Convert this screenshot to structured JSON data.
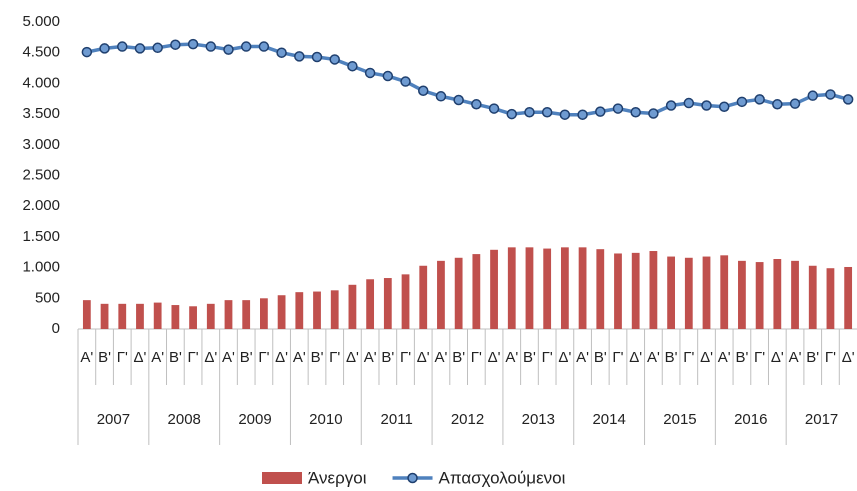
{
  "chart_data": {
    "type": "bar",
    "categories": [
      "Α'",
      "Β'",
      "Γ'",
      "Δ'",
      "Α'",
      "Β'",
      "Γ'",
      "Δ'",
      "Α'",
      "Β'",
      "Γ'",
      "Δ'",
      "Α'",
      "Β'",
      "Γ'",
      "Δ'",
      "Α'",
      "Β'",
      "Γ'",
      "Δ'",
      "Α'",
      "Β'",
      "Γ'",
      "Δ'",
      "Α'",
      "Β'",
      "Γ'",
      "Δ'",
      "Α'",
      "Β'",
      "Γ'",
      "Δ'",
      "Α'",
      "Β'",
      "Γ'",
      "Δ'",
      "Α'",
      "Β'",
      "Γ'",
      "Δ'",
      "Α'",
      "Β'",
      "Γ'",
      "Δ'"
    ],
    "years": [
      "2007",
      "2008",
      "2009",
      "2010",
      "2011",
      "2012",
      "2013",
      "2014",
      "2015",
      "2016",
      "2017"
    ],
    "series": [
      {
        "name": "Άνεργοι",
        "type": "bar",
        "color": "#c0504d",
        "values": [
          470,
          410,
          410,
          410,
          430,
          390,
          370,
          410,
          470,
          470,
          500,
          550,
          600,
          610,
          630,
          720,
          810,
          830,
          890,
          1030,
          1110,
          1160,
          1220,
          1290,
          1330,
          1330,
          1310,
          1330,
          1330,
          1300,
          1230,
          1240,
          1270,
          1180,
          1160,
          1180,
          1200,
          1110,
          1090,
          1140,
          1110,
          1030,
          990,
          1010
        ]
      },
      {
        "name": "Απασχολούμενοι",
        "type": "line",
        "color": "#4f81bd",
        "values": [
          4510,
          4570,
          4600,
          4570,
          4580,
          4630,
          4640,
          4600,
          4550,
          4600,
          4600,
          4500,
          4440,
          4430,
          4390,
          4280,
          4170,
          4120,
          4030,
          3880,
          3790,
          3730,
          3660,
          3590,
          3500,
          3530,
          3530,
          3490,
          3490,
          3540,
          3590,
          3530,
          3510,
          3640,
          3680,
          3640,
          3620,
          3700,
          3740,
          3660,
          3670,
          3800,
          3820,
          3740
        ]
      }
    ],
    "ylim": [
      0,
      5000
    ],
    "yticks": [
      0,
      500,
      {
        "value": 1000,
        "label": "1.000"
      },
      {
        "value": 1500,
        "label": "1.500"
      },
      {
        "value": 2000,
        "label": "2.000"
      },
      {
        "value": 2500,
        "label": "2.500"
      },
      {
        "value": 3000,
        "label": "3.000"
      },
      {
        "value": 3500,
        "label": "3.500"
      },
      {
        "value": 4000,
        "label": "4.000"
      },
      {
        "value": 4500,
        "label": "4.500"
      },
      {
        "value": 5000,
        "label": "5.000"
      }
    ],
    "legend": "bottom"
  }
}
